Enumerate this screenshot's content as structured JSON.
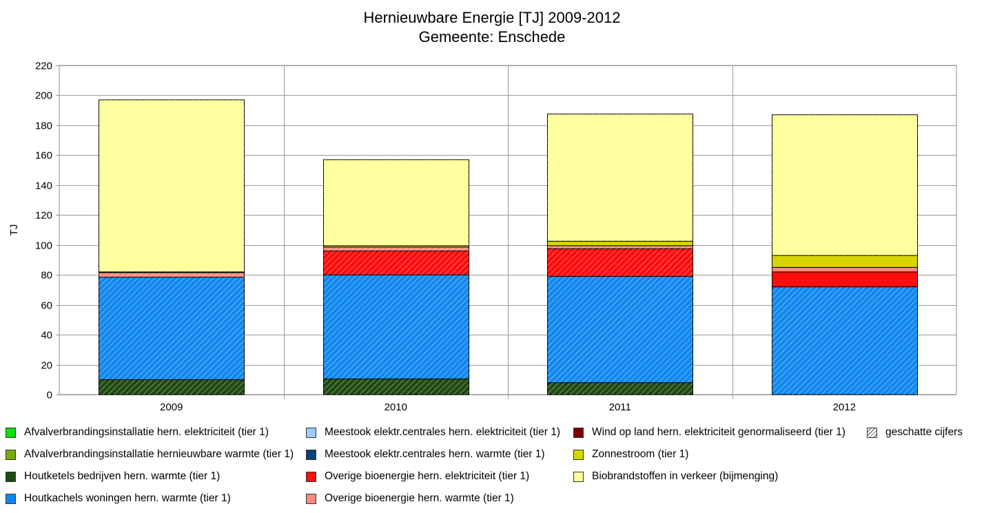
{
  "chart_data": {
    "type": "bar",
    "stacked": true,
    "title": "Hernieuwbare Energie [TJ] 2009-2012",
    "subtitle": "Gemeente: Enschede",
    "xlabel": "",
    "ylabel": "TJ",
    "ylim": [
      0,
      220
    ],
    "yticks": [
      0,
      20,
      40,
      60,
      80,
      100,
      120,
      140,
      160,
      180,
      200,
      220
    ],
    "grid": true,
    "legend_position": "bottom",
    "categories": [
      "2009",
      "2010",
      "2011",
      "2012"
    ],
    "series": [
      {
        "name": "Afvalverbrandingsinstallatie hern. elektriciteit (tier 1)",
        "color": "#11dd11",
        "values": [
          0,
          0,
          0,
          0
        ]
      },
      {
        "name": "Afvalverbrandingsinstallatie hernieuwbare warmte (tier 1)",
        "color": "#77aa11",
        "values": [
          0,
          0,
          0,
          0
        ]
      },
      {
        "name": "Houtketels bedrijven hern. warmte (tier 1)",
        "color": "#1f4a10",
        "values": [
          10,
          10.5,
          8,
          0
        ],
        "estimated": [
          true,
          true,
          true,
          true
        ]
      },
      {
        "name": "Houtkachels woningen hern. warmte (tier 1)",
        "color": "#1188ee",
        "values": [
          68.5,
          69.5,
          71,
          72
        ],
        "estimated": [
          true,
          true,
          true,
          true
        ]
      },
      {
        "name": "Meestook elektr.centrales hern. elektriciteit (tier 1)",
        "color": "#99ccff",
        "values": [
          0,
          0,
          0,
          0
        ]
      },
      {
        "name": "Meestook elektr.centrales hern. warmte (tier 1)",
        "color": "#0a3f7a",
        "values": [
          0,
          0,
          0,
          0
        ]
      },
      {
        "name": "Overige bioenergie hern. elektriciteit (tier 1)",
        "color": "#ff0c0c",
        "values": [
          0,
          16,
          18.5,
          10
        ],
        "estimated": [
          true,
          true,
          true,
          false
        ]
      },
      {
        "name": "Overige bioenergie hern. warmte (tier 1)",
        "color": "#ff8b80",
        "values": [
          3,
          2.5,
          2,
          3
        ],
        "estimated": [
          true,
          true,
          true,
          false
        ]
      },
      {
        "name": "Wind op land hern. elektriciteit genormaliseerd (tier 1)",
        "color": "#7a0000",
        "values": [
          0,
          0,
          0,
          0
        ]
      },
      {
        "name": "Zonnestroom (tier 1)",
        "color": "#d6d600",
        "values": [
          0.5,
          1,
          3,
          8
        ],
        "estimated": [
          false,
          false,
          false,
          false
        ]
      },
      {
        "name": "Biobrandstoffen in verkeer (bijmenging)",
        "color": "#ffff99",
        "values": [
          115,
          57.5,
          85,
          94
        ],
        "estimated": [
          true,
          true,
          true,
          true
        ]
      }
    ],
    "estimate_legend_label": "geschatte cijfers"
  }
}
